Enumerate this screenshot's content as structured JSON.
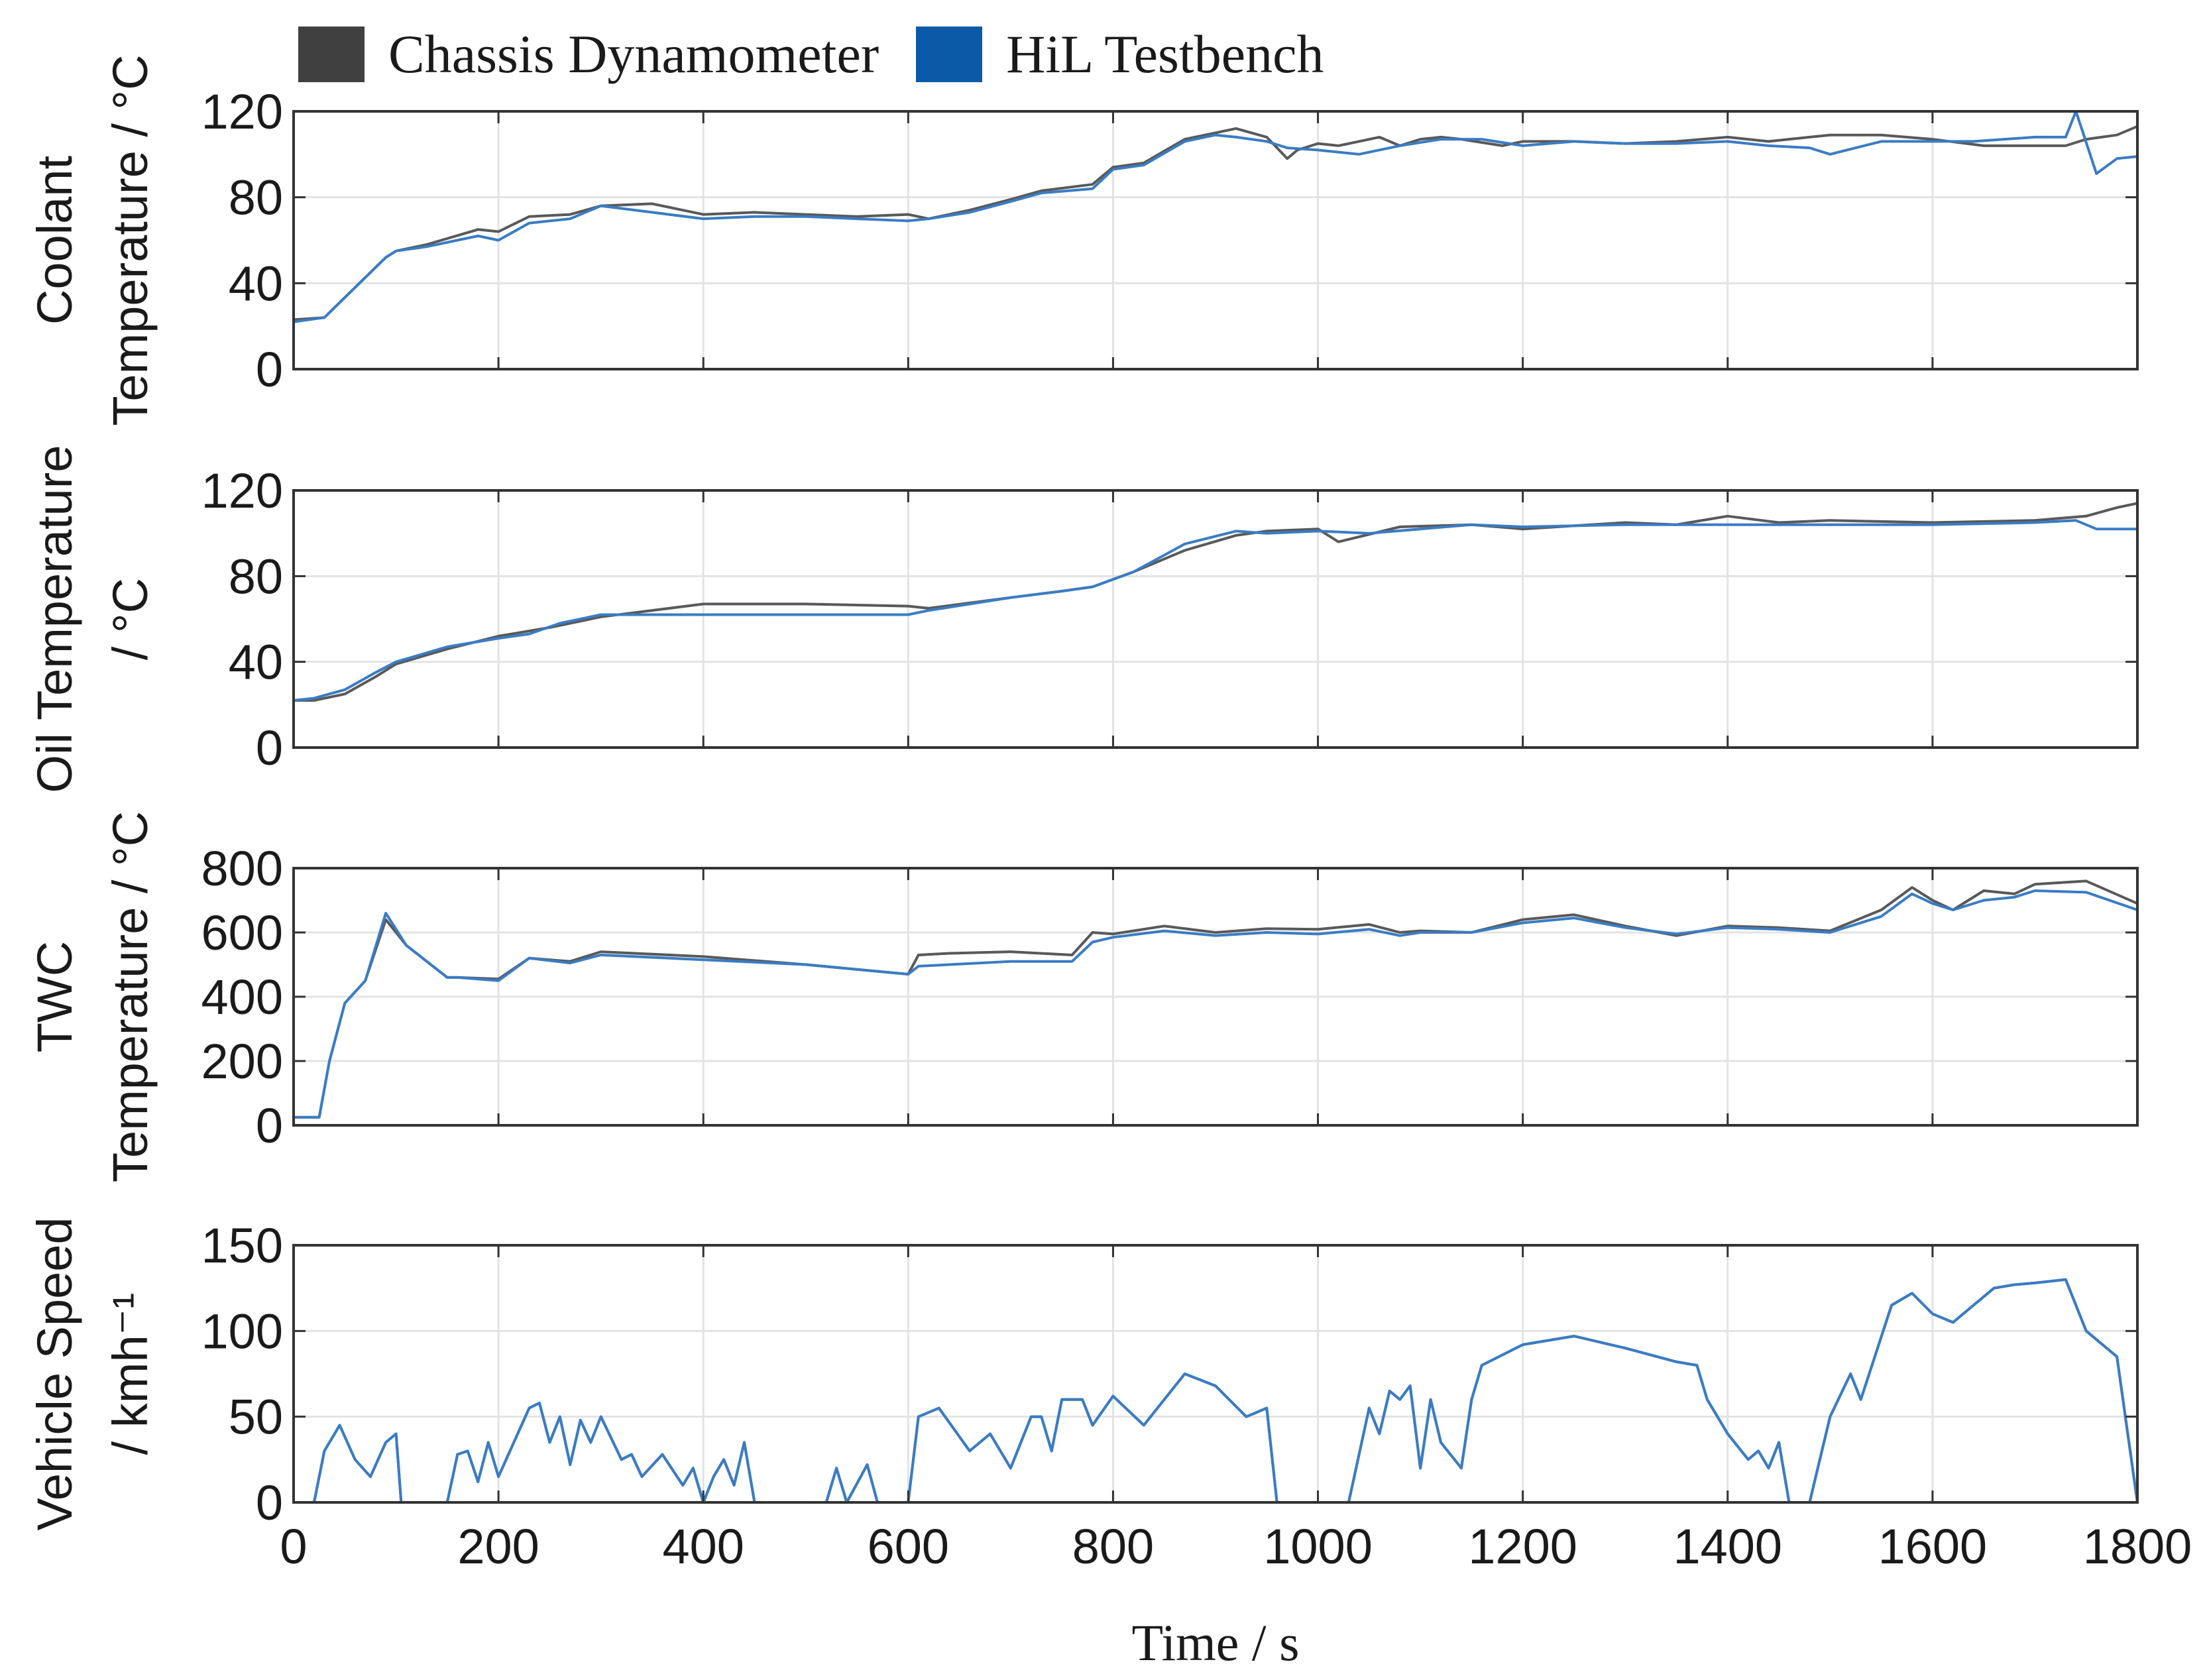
{
  "legend": [
    {
      "label": "Chassis Dynamometer",
      "color": "#404040"
    },
    {
      "label": "HiL Testbench",
      "color": "#0b5aa8"
    }
  ],
  "colors": {
    "chassis_line": "#595959",
    "hil_line": "#3a7cc4",
    "grid": "#e3e3e3",
    "axis": "#333333"
  },
  "xaxis": {
    "label": "Time / s",
    "range": [
      0,
      1800
    ],
    "ticks": [
      0,
      200,
      400,
      600,
      800,
      1000,
      1200,
      1400,
      1600,
      1800
    ]
  },
  "chart_data": [
    {
      "type": "line",
      "title": "",
      "ylabel_lines": [
        "Coolant",
        "Temperature / °C"
      ],
      "ylim": [
        0,
        120
      ],
      "yticks": [
        0,
        40,
        80,
        120
      ],
      "grid": true,
      "series": [
        {
          "name": "Chassis Dynamometer",
          "x": [
            0,
            30,
            60,
            90,
            100,
            130,
            180,
            200,
            230,
            270,
            300,
            350,
            400,
            450,
            500,
            550,
            600,
            620,
            660,
            700,
            730,
            780,
            800,
            830,
            870,
            900,
            920,
            950,
            970,
            980,
            1000,
            1020,
            1060,
            1080,
            1100,
            1120,
            1140,
            1180,
            1200,
            1250,
            1300,
            1350,
            1400,
            1440,
            1480,
            1500,
            1550,
            1600,
            1650,
            1700,
            1730,
            1750,
            1780,
            1800
          ],
          "y": [
            23,
            24,
            38,
            52,
            55,
            58,
            65,
            64,
            71,
            72,
            76,
            77,
            72,
            73,
            72,
            71,
            72,
            70,
            74,
            79,
            83,
            86,
            94,
            96,
            107,
            110,
            112,
            108,
            98,
            102,
            105,
            104,
            108,
            104,
            107,
            108,
            107,
            104,
            106,
            106,
            105,
            106,
            108,
            106,
            108,
            109,
            109,
            107,
            104,
            104,
            104,
            107,
            109,
            113
          ]
        },
        {
          "name": "HiL Testbench",
          "x": [
            0,
            30,
            60,
            90,
            100,
            130,
            180,
            200,
            230,
            270,
            300,
            350,
            400,
            450,
            500,
            550,
            600,
            620,
            660,
            700,
            730,
            780,
            800,
            830,
            870,
            900,
            920,
            950,
            970,
            1000,
            1040,
            1080,
            1120,
            1160,
            1200,
            1250,
            1300,
            1350,
            1400,
            1440,
            1480,
            1500,
            1550,
            1600,
            1640,
            1700,
            1730,
            1740,
            1760,
            1780,
            1800
          ],
          "y": [
            22,
            24,
            38,
            52,
            55,
            57,
            62,
            60,
            68,
            70,
            76,
            73,
            70,
            71,
            71,
            70,
            69,
            70,
            73,
            78,
            82,
            84,
            93,
            95,
            106,
            109,
            108,
            106,
            103,
            102,
            100,
            104,
            107,
            107,
            104,
            106,
            105,
            105,
            106,
            104,
            103,
            100,
            106,
            106,
            106,
            108,
            108,
            120,
            91,
            98,
            99
          ]
        }
      ]
    },
    {
      "type": "line",
      "title": "",
      "ylabel_lines": [
        "Oil Temperature",
        "/ °C"
      ],
      "ylim": [
        0,
        120
      ],
      "yticks": [
        0,
        40,
        80,
        120
      ],
      "grid": true,
      "series": [
        {
          "name": "Chassis Dynamometer",
          "x": [
            0,
            20,
            50,
            80,
            100,
            150,
            200,
            250,
            300,
            400,
            500,
            600,
            620,
            700,
            750,
            780,
            820,
            870,
            920,
            950,
            1000,
            1020,
            1080,
            1150,
            1200,
            1300,
            1350,
            1400,
            1450,
            1500,
            1600,
            1700,
            1750,
            1780,
            1800
          ],
          "y": [
            22,
            22,
            25,
            33,
            39,
            46,
            52,
            56,
            61,
            67,
            67,
            66,
            65,
            70,
            73,
            75,
            82,
            92,
            99,
            101,
            102,
            96,
            103,
            104,
            102,
            105,
            104,
            108,
            105,
            106,
            105,
            106,
            108,
            112,
            114
          ]
        },
        {
          "name": "HiL Testbench",
          "x": [
            0,
            20,
            50,
            80,
            100,
            150,
            200,
            230,
            260,
            300,
            400,
            500,
            600,
            620,
            700,
            750,
            780,
            820,
            870,
            920,
            950,
            1000,
            1050,
            1100,
            1150,
            1200,
            1300,
            1350,
            1400,
            1450,
            1500,
            1600,
            1700,
            1740,
            1760,
            1800
          ],
          "y": [
            22,
            23,
            27,
            35,
            40,
            47,
            51,
            53,
            58,
            62,
            62,
            62,
            62,
            64,
            70,
            73,
            75,
            82,
            95,
            101,
            100,
            101,
            100,
            102,
            104,
            103,
            104,
            104,
            104,
            104,
            104,
            104,
            105,
            106,
            102,
            102
          ]
        }
      ]
    },
    {
      "type": "line",
      "title": "",
      "ylabel_lines": [
        "TWC",
        "Temperature / °C"
      ],
      "ylim": [
        0,
        800
      ],
      "yticks": [
        0,
        200,
        400,
        600,
        800
      ],
      "grid": true,
      "series": [
        {
          "name": "Chassis Dynamometer",
          "x": [
            0,
            25,
            35,
            50,
            70,
            90,
            110,
            150,
            160,
            200,
            230,
            270,
            300,
            400,
            500,
            600,
            610,
            640,
            700,
            760,
            780,
            800,
            850,
            900,
            950,
            1000,
            1050,
            1080,
            1100,
            1150,
            1200,
            1250,
            1300,
            1350,
            1400,
            1450,
            1500,
            1550,
            1580,
            1600,
            1620,
            1650,
            1680,
            1700,
            1750,
            1800
          ],
          "y": [
            25,
            25,
            200,
            380,
            450,
            640,
            560,
            460,
            460,
            455,
            520,
            510,
            540,
            525,
            500,
            470,
            530,
            535,
            540,
            530,
            600,
            595,
            620,
            600,
            612,
            610,
            625,
            600,
            605,
            600,
            640,
            655,
            620,
            590,
            620,
            615,
            605,
            670,
            740,
            700,
            670,
            730,
            720,
            750,
            760,
            690
          ]
        },
        {
          "name": "HiL Testbench",
          "x": [
            0,
            25,
            35,
            50,
            70,
            90,
            110,
            150,
            160,
            200,
            230,
            270,
            300,
            400,
            500,
            600,
            610,
            640,
            700,
            760,
            780,
            800,
            850,
            900,
            950,
            1000,
            1050,
            1080,
            1100,
            1150,
            1200,
            1250,
            1300,
            1350,
            1400,
            1450,
            1500,
            1550,
            1580,
            1600,
            1620,
            1650,
            1680,
            1700,
            1750,
            1800
          ],
          "y": [
            25,
            25,
            200,
            380,
            450,
            660,
            560,
            460,
            460,
            450,
            520,
            505,
            530,
            515,
            500,
            470,
            495,
            500,
            510,
            510,
            570,
            585,
            605,
            590,
            600,
            595,
            610,
            590,
            600,
            600,
            630,
            645,
            615,
            595,
            615,
            610,
            600,
            650,
            720,
            690,
            670,
            700,
            710,
            730,
            725,
            670
          ]
        }
      ]
    },
    {
      "type": "line",
      "title": "",
      "ylabel_lines": [
        "Vehicle Speed",
        "/ kmh⁻¹"
      ],
      "ylim": [
        0,
        150
      ],
      "yticks": [
        0,
        50,
        100,
        150
      ],
      "grid": true,
      "series": [
        {
          "name": "Chassis Dynamometer",
          "x": [
            0,
            20,
            30,
            45,
            60,
            75,
            90,
            100,
            105,
            150,
            160,
            170,
            180,
            190,
            200,
            230,
            240,
            250,
            260,
            270,
            280,
            290,
            300,
            320,
            330,
            340,
            360,
            380,
            390,
            400,
            410,
            420,
            430,
            440,
            450,
            520,
            530,
            540,
            560,
            570,
            600,
            610,
            630,
            660,
            680,
            700,
            720,
            730,
            740,
            750,
            770,
            780,
            800,
            830,
            870,
            900,
            930,
            950,
            960,
            970,
            980,
            1030,
            1050,
            1060,
            1070,
            1080,
            1090,
            1100,
            1110,
            1120,
            1140,
            1150,
            1160,
            1200,
            1250,
            1300,
            1350,
            1370,
            1380,
            1400,
            1420,
            1430,
            1440,
            1450,
            1460,
            1480,
            1500,
            1520,
            1530,
            1560,
            1580,
            1600,
            1620,
            1640,
            1660,
            1680,
            1700,
            1730,
            1750,
            1780,
            1800
          ],
          "y": [
            0,
            0,
            30,
            45,
            25,
            15,
            35,
            40,
            0,
            0,
            28,
            30,
            12,
            35,
            15,
            55,
            58,
            35,
            50,
            22,
            48,
            35,
            50,
            25,
            28,
            15,
            28,
            10,
            20,
            0,
            15,
            25,
            10,
            35,
            0,
            0,
            20,
            0,
            22,
            0,
            0,
            50,
            55,
            30,
            40,
            20,
            50,
            50,
            30,
            60,
            60,
            45,
            62,
            45,
            75,
            68,
            50,
            55,
            0,
            0,
            0,
            0,
            55,
            40,
            65,
            60,
            68,
            20,
            60,
            35,
            20,
            60,
            80,
            92,
            97,
            90,
            82,
            80,
            60,
            40,
            25,
            30,
            20,
            35,
            0,
            0,
            50,
            75,
            60,
            115,
            122,
            110,
            105,
            115,
            125,
            127,
            128,
            130,
            100,
            85,
            0
          ]
        },
        {
          "name": "HiL Testbench",
          "x": [
            0,
            20,
            30,
            45,
            60,
            75,
            90,
            100,
            105,
            150,
            160,
            170,
            180,
            190,
            200,
            230,
            240,
            250,
            260,
            270,
            280,
            290,
            300,
            320,
            330,
            340,
            360,
            380,
            390,
            400,
            410,
            420,
            430,
            440,
            450,
            520,
            530,
            540,
            560,
            570,
            600,
            610,
            630,
            660,
            680,
            700,
            720,
            730,
            740,
            750,
            770,
            780,
            800,
            830,
            870,
            900,
            930,
            950,
            960,
            970,
            980,
            1030,
            1050,
            1060,
            1070,
            1080,
            1090,
            1100,
            1110,
            1120,
            1140,
            1150,
            1160,
            1200,
            1250,
            1300,
            1350,
            1370,
            1380,
            1400,
            1420,
            1430,
            1440,
            1450,
            1460,
            1480,
            1500,
            1520,
            1530,
            1560,
            1580,
            1600,
            1620,
            1640,
            1660,
            1680,
            1700,
            1730,
            1750,
            1780,
            1800
          ],
          "y": [
            0,
            0,
            30,
            45,
            25,
            15,
            35,
            40,
            0,
            0,
            28,
            30,
            12,
            35,
            15,
            55,
            58,
            35,
            50,
            22,
            48,
            35,
            50,
            25,
            28,
            15,
            28,
            10,
            20,
            0,
            15,
            25,
            10,
            35,
            0,
            0,
            20,
            0,
            22,
            0,
            0,
            50,
            55,
            30,
            40,
            20,
            50,
            50,
            30,
            60,
            60,
            45,
            62,
            45,
            75,
            68,
            50,
            55,
            0,
            0,
            0,
            0,
            55,
            40,
            65,
            60,
            68,
            20,
            60,
            35,
            20,
            60,
            80,
            92,
            97,
            90,
            82,
            80,
            60,
            40,
            25,
            30,
            20,
            35,
            0,
            0,
            50,
            75,
            60,
            115,
            122,
            110,
            105,
            115,
            125,
            127,
            128,
            130,
            100,
            85,
            0
          ]
        }
      ]
    }
  ]
}
